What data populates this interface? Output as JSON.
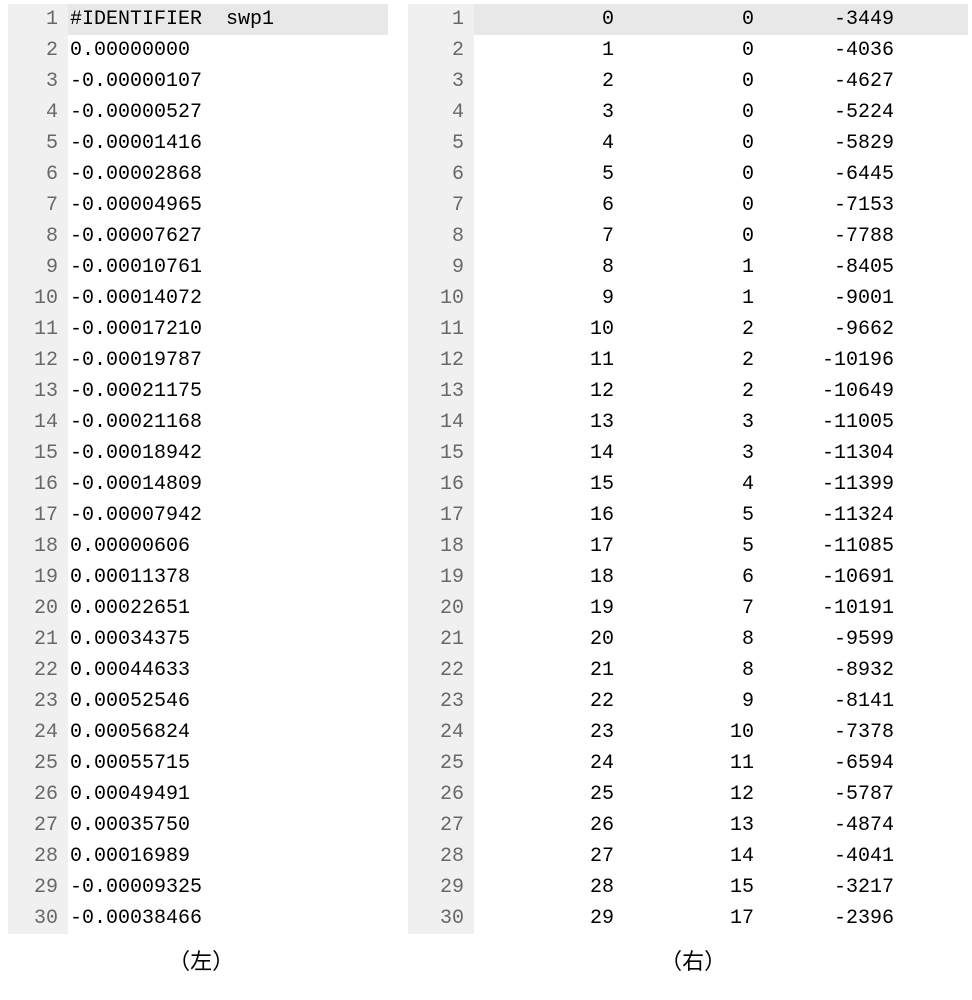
{
  "captions": {
    "left": "（左）",
    "right": "（右）"
  },
  "left_panel": {
    "rows": [
      {
        "ln": "1",
        "val": "#IDENTIFIER  swp1",
        "highlight": true
      },
      {
        "ln": "2",
        "val": "0.00000000"
      },
      {
        "ln": "3",
        "val": "-0.00000107"
      },
      {
        "ln": "4",
        "val": "-0.00000527"
      },
      {
        "ln": "5",
        "val": "-0.00001416"
      },
      {
        "ln": "6",
        "val": "-0.00002868"
      },
      {
        "ln": "7",
        "val": "-0.00004965"
      },
      {
        "ln": "8",
        "val": "-0.00007627"
      },
      {
        "ln": "9",
        "val": "-0.00010761"
      },
      {
        "ln": "10",
        "val": "-0.00014072"
      },
      {
        "ln": "11",
        "val": "-0.00017210"
      },
      {
        "ln": "12",
        "val": "-0.00019787"
      },
      {
        "ln": "13",
        "val": "-0.00021175"
      },
      {
        "ln": "14",
        "val": "-0.00021168"
      },
      {
        "ln": "15",
        "val": "-0.00018942"
      },
      {
        "ln": "16",
        "val": "-0.00014809"
      },
      {
        "ln": "17",
        "val": "-0.00007942"
      },
      {
        "ln": "18",
        "val": "0.00000606"
      },
      {
        "ln": "19",
        "val": "0.00011378"
      },
      {
        "ln": "20",
        "val": "0.00022651"
      },
      {
        "ln": "21",
        "val": "0.00034375"
      },
      {
        "ln": "22",
        "val": "0.00044633"
      },
      {
        "ln": "23",
        "val": "0.00052546"
      },
      {
        "ln": "24",
        "val": "0.00056824"
      },
      {
        "ln": "25",
        "val": "0.00055715"
      },
      {
        "ln": "26",
        "val": "0.00049491"
      },
      {
        "ln": "27",
        "val": "0.00035750"
      },
      {
        "ln": "28",
        "val": "0.00016989"
      },
      {
        "ln": "29",
        "val": "-0.00009325"
      },
      {
        "ln": "30",
        "val": "-0.00038466"
      }
    ]
  },
  "right_panel": {
    "rows": [
      {
        "ln": "1",
        "c1": "0",
        "c2": "0",
        "c3": "-3449",
        "highlight": true
      },
      {
        "ln": "2",
        "c1": "1",
        "c2": "0",
        "c3": "-4036"
      },
      {
        "ln": "3",
        "c1": "2",
        "c2": "0",
        "c3": "-4627"
      },
      {
        "ln": "4",
        "c1": "3",
        "c2": "0",
        "c3": "-5224"
      },
      {
        "ln": "5",
        "c1": "4",
        "c2": "0",
        "c3": "-5829"
      },
      {
        "ln": "6",
        "c1": "5",
        "c2": "0",
        "c3": "-6445"
      },
      {
        "ln": "7",
        "c1": "6",
        "c2": "0",
        "c3": "-7153"
      },
      {
        "ln": "8",
        "c1": "7",
        "c2": "0",
        "c3": "-7788"
      },
      {
        "ln": "9",
        "c1": "8",
        "c2": "1",
        "c3": "-8405"
      },
      {
        "ln": "10",
        "c1": "9",
        "c2": "1",
        "c3": "-9001"
      },
      {
        "ln": "11",
        "c1": "10",
        "c2": "2",
        "c3": "-9662"
      },
      {
        "ln": "12",
        "c1": "11",
        "c2": "2",
        "c3": "-10196"
      },
      {
        "ln": "13",
        "c1": "12",
        "c2": "2",
        "c3": "-10649"
      },
      {
        "ln": "14",
        "c1": "13",
        "c2": "3",
        "c3": "-11005"
      },
      {
        "ln": "15",
        "c1": "14",
        "c2": "3",
        "c3": "-11304"
      },
      {
        "ln": "16",
        "c1": "15",
        "c2": "4",
        "c3": "-11399"
      },
      {
        "ln": "17",
        "c1": "16",
        "c2": "5",
        "c3": "-11324"
      },
      {
        "ln": "18",
        "c1": "17",
        "c2": "5",
        "c3": "-11085"
      },
      {
        "ln": "19",
        "c1": "18",
        "c2": "6",
        "c3": "-10691"
      },
      {
        "ln": "20",
        "c1": "19",
        "c2": "7",
        "c3": "-10191"
      },
      {
        "ln": "21",
        "c1": "20",
        "c2": "8",
        "c3": "-9599"
      },
      {
        "ln": "22",
        "c1": "21",
        "c2": "8",
        "c3": "-8932"
      },
      {
        "ln": "23",
        "c1": "22",
        "c2": "9",
        "c3": "-8141"
      },
      {
        "ln": "24",
        "c1": "23",
        "c2": "10",
        "c3": "-7378"
      },
      {
        "ln": "25",
        "c1": "24",
        "c2": "11",
        "c3": "-6594"
      },
      {
        "ln": "26",
        "c1": "25",
        "c2": "12",
        "c3": "-5787"
      },
      {
        "ln": "27",
        "c1": "26",
        "c2": "13",
        "c3": "-4874"
      },
      {
        "ln": "28",
        "c1": "27",
        "c2": "14",
        "c3": "-4041"
      },
      {
        "ln": "29",
        "c1": "28",
        "c2": "15",
        "c3": "-3217"
      },
      {
        "ln": "30",
        "c1": "29",
        "c2": "17",
        "c3": "-2396"
      }
    ]
  }
}
